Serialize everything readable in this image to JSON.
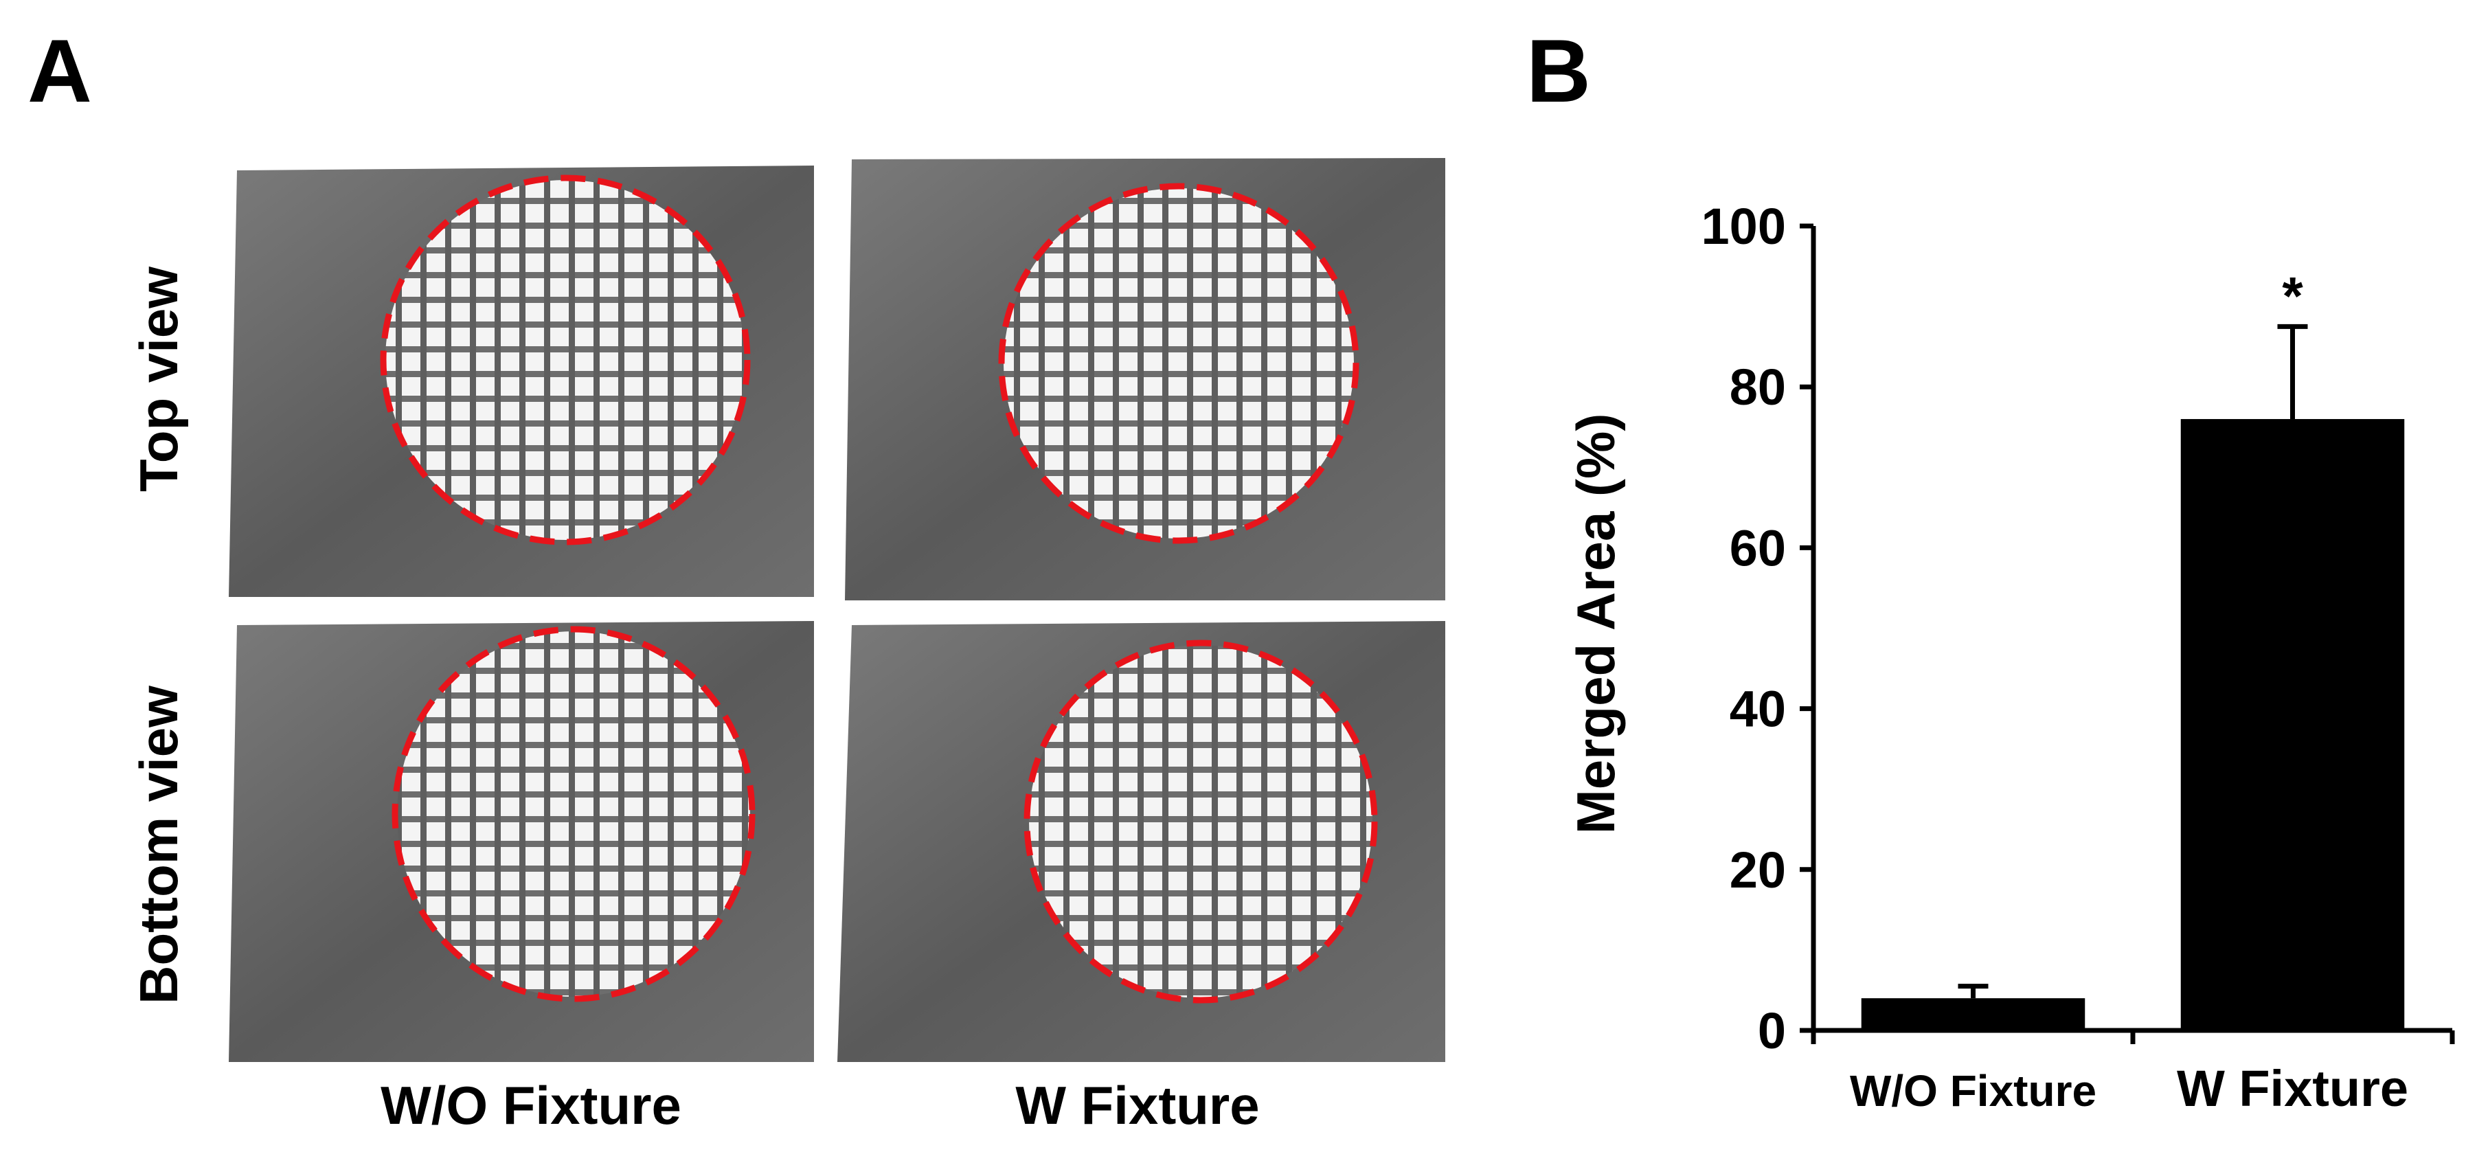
{
  "panel_a": {
    "letter": "A",
    "row_labels": [
      "Top view",
      "Bottom view"
    ],
    "column_labels": [
      "W/O Fixture",
      "W Fixture"
    ]
  },
  "chart_data": {
    "type": "bar",
    "panel_letter": "B",
    "y_label": "Merged Area (%)",
    "categories": [
      "W/O Fixture",
      "W Fixture"
    ],
    "series": [
      {
        "color": "#000000",
        "values": [
          4,
          76
        ],
        "errors": [
          1.5,
          11.5
        ]
      }
    ],
    "annotation": "*",
    "ylim": [
      0,
      100
    ],
    "yticks": [
      0,
      20,
      40,
      60,
      80,
      100
    ]
  }
}
